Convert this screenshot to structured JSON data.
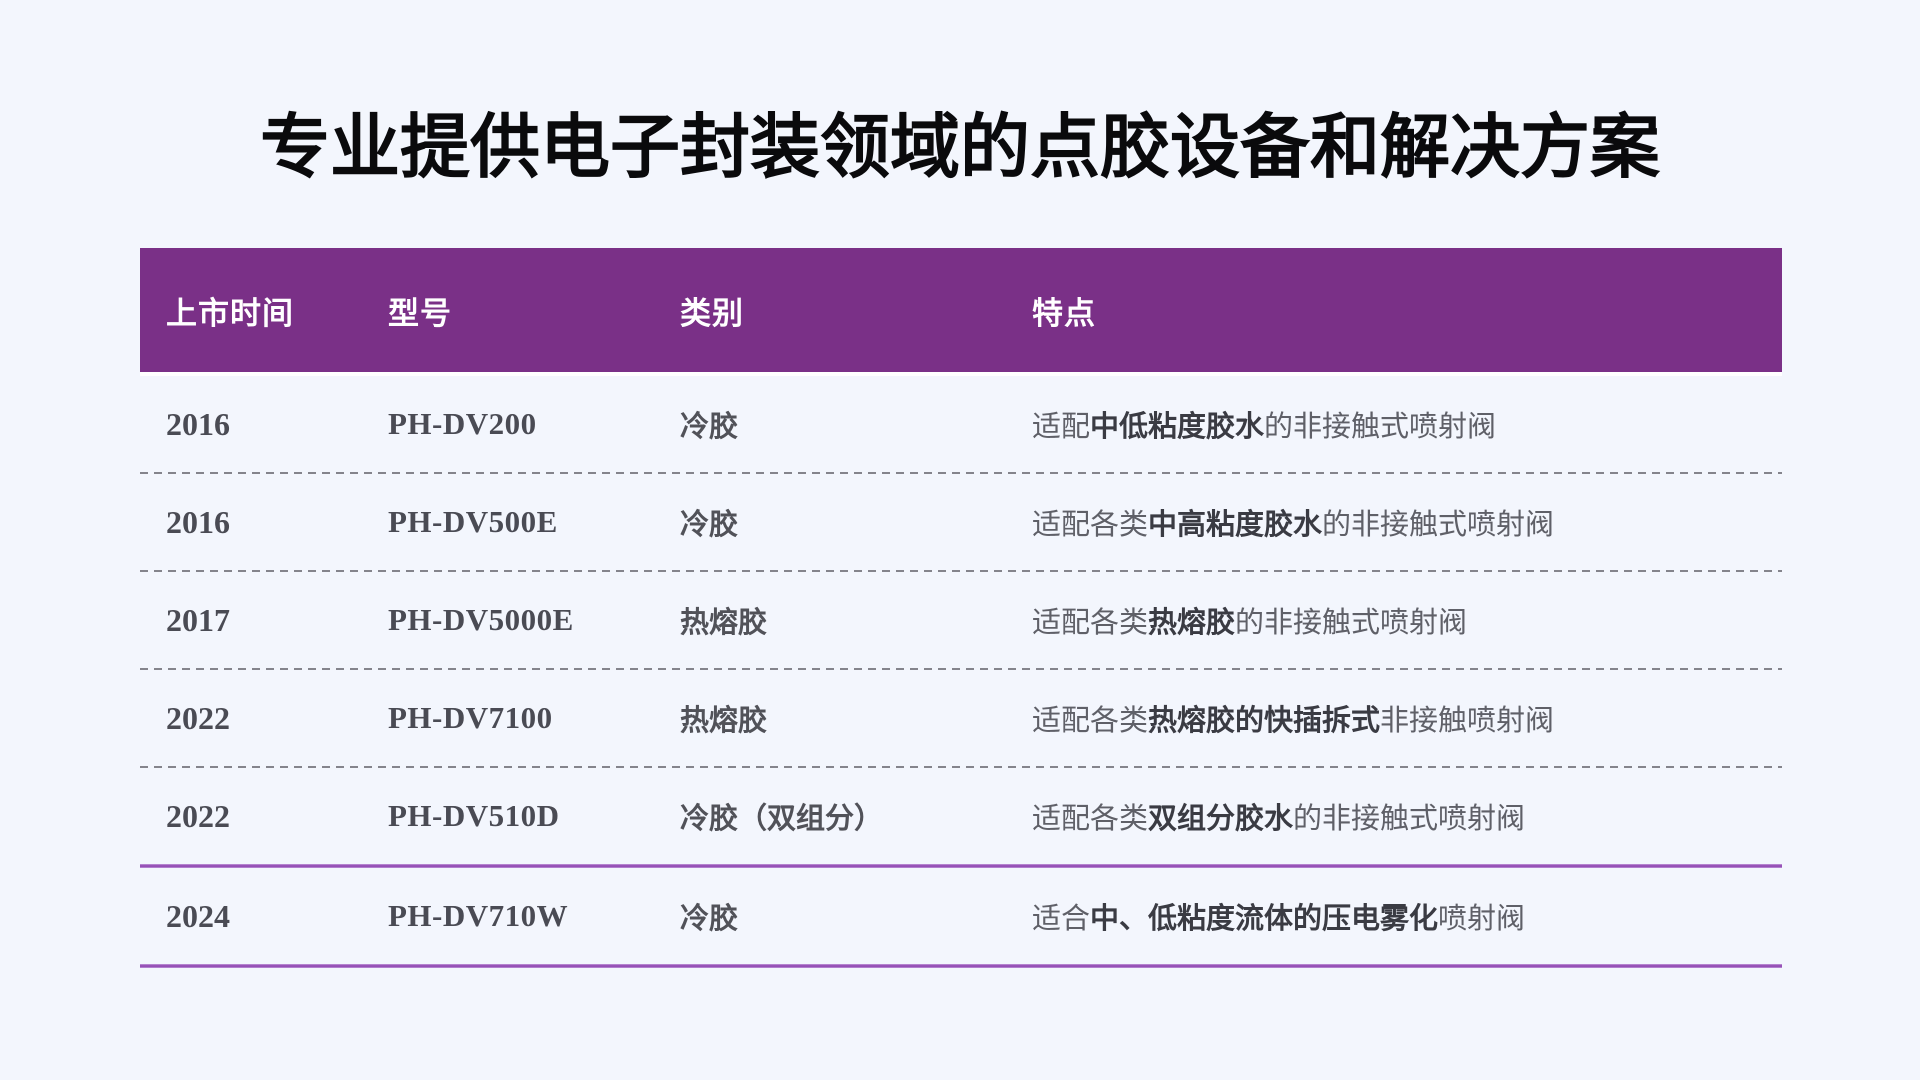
{
  "page": {
    "title": "专业提供电子封装领域的点胶设备和解决方案",
    "colors": {
      "background": "#f3f6fd",
      "header_background": "#7a3087",
      "header_text": "#ffffff",
      "divider_dashed": "#84848c",
      "divider_solid_purple": "#9550b6",
      "title_text": "#0a0a0c",
      "body_text": "#5f6068",
      "body_text_bold": "#3a3b43"
    }
  },
  "table": {
    "columns": [
      "上市时间",
      "型号",
      "类别",
      "特点"
    ],
    "rows": [
      {
        "year": "2016",
        "model": "PH-DV200",
        "category": "冷胶",
        "feature": {
          "prefix": "适配",
          "bold": "中低粘度胶水",
          "suffix": "的非接触式喷射阀"
        }
      },
      {
        "year": "2016",
        "model": "PH-DV500E",
        "category": "冷胶",
        "feature": {
          "prefix": "适配各类",
          "bold": "中高粘度胶水",
          "suffix": "的非接触式喷射阀"
        }
      },
      {
        "year": "2017",
        "model": "PH-DV5000E",
        "category": "热熔胶",
        "feature": {
          "prefix": "适配各类",
          "bold": "热熔胶",
          "suffix": "的非接触式喷射阀"
        }
      },
      {
        "year": "2022",
        "model": "PH-DV7100",
        "category": "热熔胶",
        "feature": {
          "prefix": "适配各类",
          "bold": "热熔胶的快插拆式",
          "suffix": "非接触喷射阀"
        }
      },
      {
        "year": "2022",
        "model": "PH-DV510D",
        "category": "冷胶（双组分）",
        "feature": {
          "prefix": "适配各类",
          "bold": "双组分胶水",
          "suffix": "的非接触式喷射阀"
        }
      },
      {
        "year": "2024",
        "model": "PH-DV710W",
        "category": "冷胶",
        "feature": {
          "prefix": "适合",
          "bold": "中、低粘度流体的压电雾化",
          "suffix": "喷射阀"
        }
      }
    ]
  }
}
